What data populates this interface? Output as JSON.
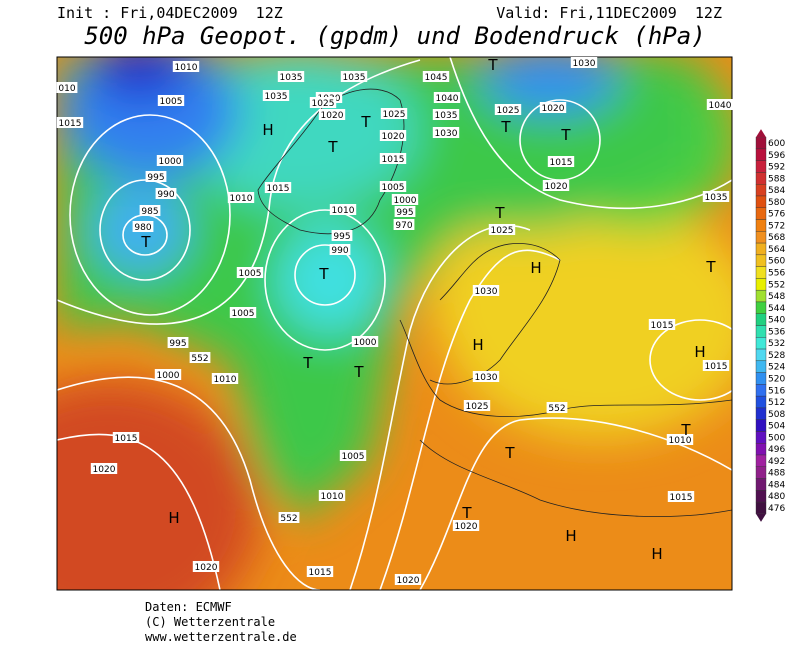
{
  "header": {
    "init": "Init : Fri,04DEC2009  12Z",
    "valid": "Valid: Fri,11DEC2009  12Z",
    "title": "500 hPa Geopot. (gpdm) und Bodendruck (hPa)"
  },
  "colorbar": {
    "ticks": [
      600,
      596,
      592,
      588,
      584,
      580,
      576,
      572,
      568,
      564,
      560,
      556,
      552,
      548,
      544,
      540,
      536,
      532,
      528,
      524,
      520,
      516,
      512,
      508,
      504,
      500,
      496,
      492,
      488,
      484,
      480,
      476
    ],
    "colors": [
      "#a0103a",
      "#b8103c",
      "#c8203c",
      "#d03030",
      "#d84020",
      "#e05010",
      "#e86810",
      "#f08010",
      "#f09020",
      "#f0b020",
      "#f0c020",
      "#f0e020",
      "#e8f000",
      "#a0e030",
      "#40d040",
      "#20d080",
      "#30e0b0",
      "#40e8d8",
      "#50d8f0",
      "#40b8f0",
      "#3090f0",
      "#3070f0",
      "#2050e0",
      "#2030d0",
      "#3010c0",
      "#6010c0",
      "#8010b0",
      "#a020a0",
      "#90208a",
      "#701870",
      "#501050",
      "#401040"
    ]
  },
  "map": {
    "isobar_labels": [
      "1010",
      "1035",
      "1035",
      "1045",
      "1030",
      "010",
      "1005",
      "1035",
      "1030",
      "1040",
      "1025",
      "1025",
      "1020",
      "1040",
      "1015",
      "1020",
      "1025",
      "1035",
      "1030",
      "1020",
      "1000",
      "1015",
      "1015",
      "995",
      "990",
      "1015",
      "1005",
      "1020",
      "1035",
      "1010",
      "1000",
      "1010",
      "985",
      "995",
      "980",
      "970",
      "1025",
      "995",
      "990",
      "1005",
      "1030",
      "1015",
      "1005",
      "995",
      "1000",
      "1015",
      "1000",
      "1010",
      "1030",
      "1025",
      "1015",
      "1010",
      "1005",
      "1020",
      "1010",
      "1015",
      "1020",
      "1020",
      "1015",
      "1020"
    ],
    "contour_labels": [
      "552",
      "552",
      "552"
    ],
    "highs": [
      "H",
      "H",
      "H",
      "H",
      "H",
      "H",
      "H"
    ],
    "lows": [
      "T",
      "T",
      "T",
      "T",
      "T",
      "T",
      "T",
      "T",
      "T",
      "T",
      "T",
      "T",
      "T",
      "T"
    ]
  },
  "footer": {
    "source": "Daten: ECMWF",
    "copyright": "(C) Wetterzentrale",
    "url": "www.wetterzentrale.de"
  }
}
